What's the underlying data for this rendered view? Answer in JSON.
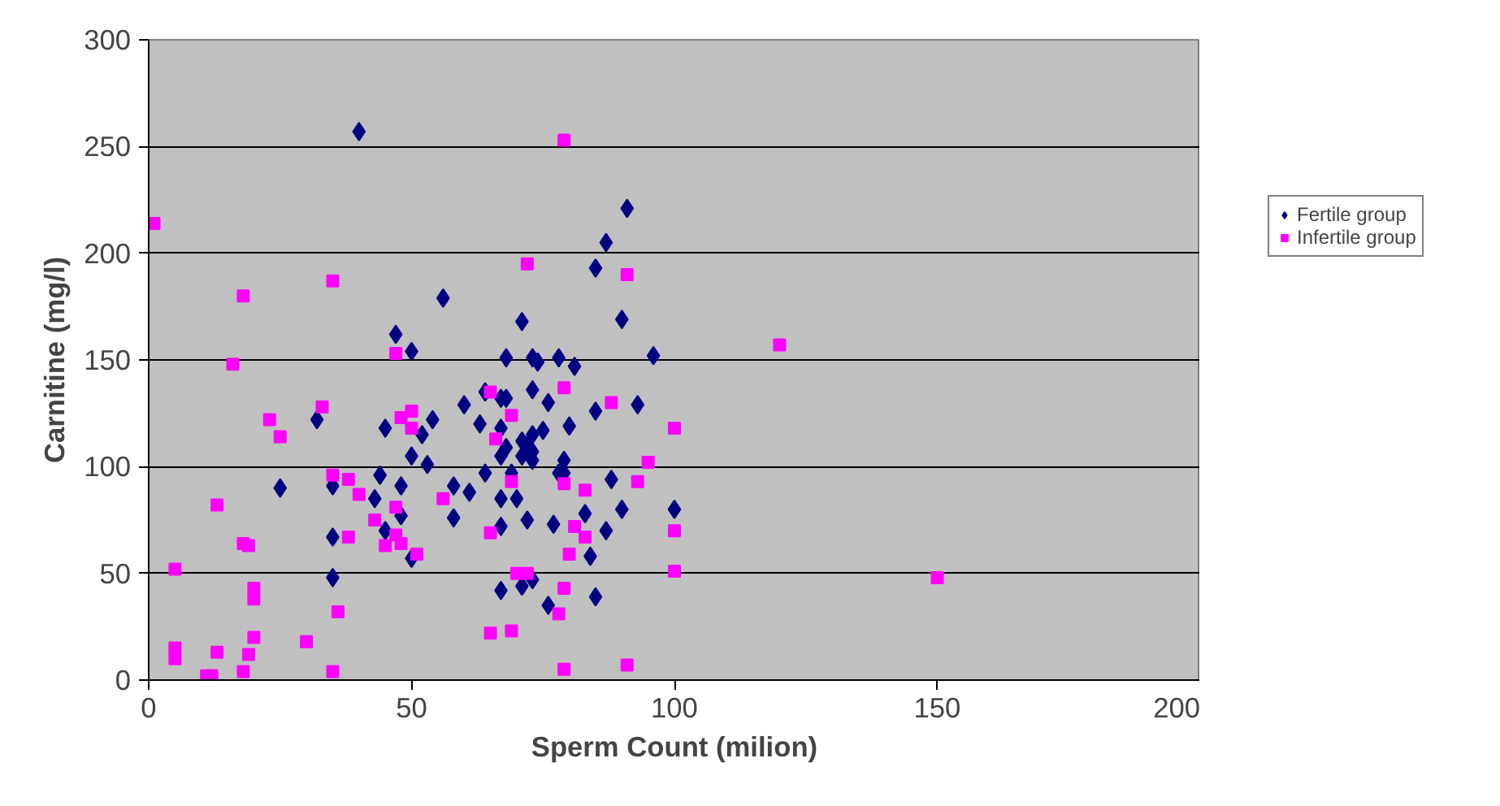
{
  "chart_data": {
    "type": "scatter",
    "xlabel": "Sperm Count (milion)",
    "ylabel": "Carnitine (mg/l)",
    "xlim": [
      0,
      200
    ],
    "ylim": [
      0,
      300
    ],
    "xticks": [
      0,
      50,
      100,
      150,
      200
    ],
    "yticks": [
      0,
      50,
      100,
      150,
      200,
      250,
      300
    ],
    "grid": "y",
    "legend": "right",
    "series": [
      {
        "name": "Fertile group",
        "color": "#000080",
        "marker": "diamond",
        "x": [
          40,
          91,
          87,
          85,
          56,
          71,
          90,
          96,
          68,
          73,
          74,
          78,
          81,
          64,
          67,
          68,
          73,
          76,
          60,
          85,
          93,
          54,
          63,
          67,
          52,
          80,
          75,
          73,
          71,
          72,
          68,
          67,
          71,
          73,
          73,
          53,
          79,
          78,
          64,
          69,
          79,
          58,
          61,
          88,
          67,
          70,
          100,
          90,
          83,
          58,
          72,
          77,
          67,
          87,
          84,
          71,
          73,
          67,
          76,
          85,
          47,
          50,
          32,
          45,
          50,
          25,
          35,
          44,
          48,
          43,
          48,
          35,
          45,
          50,
          35
        ],
        "values": [
          257,
          221,
          205,
          193,
          179,
          168,
          169,
          152,
          151,
          151,
          149,
          151,
          147,
          135,
          132,
          132,
          136,
          130,
          129,
          126,
          129,
          122,
          120,
          118,
          115,
          119,
          117,
          115,
          112,
          110,
          109,
          105,
          105,
          107,
          103,
          101,
          103,
          97,
          97,
          97,
          97,
          91,
          88,
          94,
          85,
          85,
          80,
          80,
          78,
          76,
          75,
          73,
          72,
          70,
          58,
          44,
          47,
          42,
          35,
          39,
          162,
          154,
          122,
          118,
          105,
          90,
          91,
          96,
          91,
          85,
          77,
          67,
          70,
          57,
          48
        ]
      },
      {
        "name": "Infertile group",
        "color": "#ff00ff",
        "marker": "square",
        "x": [
          1,
          35,
          18,
          16,
          47,
          33,
          23,
          50,
          48,
          50,
          25,
          35,
          38,
          40,
          13,
          47,
          43,
          38,
          47,
          45,
          48,
          51,
          18,
          19,
          5,
          20,
          20,
          36,
          20,
          30,
          5,
          5,
          13,
          19,
          11,
          12,
          18,
          35,
          79,
          72,
          91,
          65,
          79,
          69,
          88,
          66,
          100,
          95,
          69,
          79,
          83,
          93,
          56,
          65,
          81,
          83,
          100,
          80,
          100,
          70,
          72,
          79,
          78,
          65,
          69,
          79,
          91,
          120,
          150
        ],
        "values": [
          214,
          187,
          180,
          148,
          153,
          128,
          122,
          126,
          123,
          118,
          114,
          96,
          94,
          87,
          82,
          81,
          75,
          67,
          68,
          63,
          64,
          59,
          64,
          63,
          52,
          43,
          38,
          32,
          20,
          18,
          15,
          10,
          13,
          12,
          2,
          2,
          4,
          4,
          253,
          195,
          190,
          135,
          137,
          124,
          130,
          113,
          118,
          102,
          93,
          92,
          89,
          93,
          85,
          69,
          72,
          67,
          70,
          59,
          51,
          50,
          50,
          43,
          31,
          22,
          23,
          5,
          7,
          157,
          48
        ]
      }
    ]
  }
}
